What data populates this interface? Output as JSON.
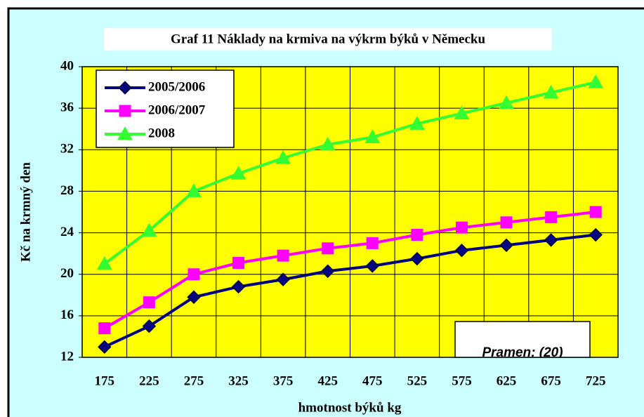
{
  "chart_data": {
    "type": "line",
    "title": "Graf 11  Náklady na krmiva na výkrm býků v Německu",
    "x_label": "hmotnost býků kg",
    "y_label": "Kč na krmný den",
    "annotation": "Pramen: (20)",
    "categories": [
      "175",
      "225",
      "275",
      "325",
      "375",
      "425",
      "475",
      "525",
      "575",
      "625",
      "675",
      "725"
    ],
    "series": [
      {
        "name": "2005/2006",
        "color": "#000080",
        "marker": "diamond",
        "values": [
          13,
          15,
          17.8,
          18.8,
          19.5,
          20.3,
          20.8,
          21.5,
          22.3,
          22.8,
          23.3,
          23.8
        ]
      },
      {
        "name": "2006/2007",
        "color": "#ff00ff",
        "marker": "square",
        "values": [
          14.8,
          17.3,
          20,
          21.1,
          21.8,
          22.5,
          23,
          23.8,
          24.5,
          25,
          25.5,
          26
        ]
      },
      {
        "name": "2008",
        "color": "#33ff33",
        "marker": "triangle",
        "values": [
          21,
          24.2,
          28,
          29.7,
          31.2,
          32.5,
          33.2,
          34.5,
          35.5,
          36.5,
          37.5,
          38.5
        ]
      }
    ],
    "ylim": [
      12,
      40
    ],
    "yticks": [
      12,
      16,
      20,
      24,
      28,
      32,
      36,
      40
    ],
    "grid": true,
    "legend": "upper left"
  }
}
